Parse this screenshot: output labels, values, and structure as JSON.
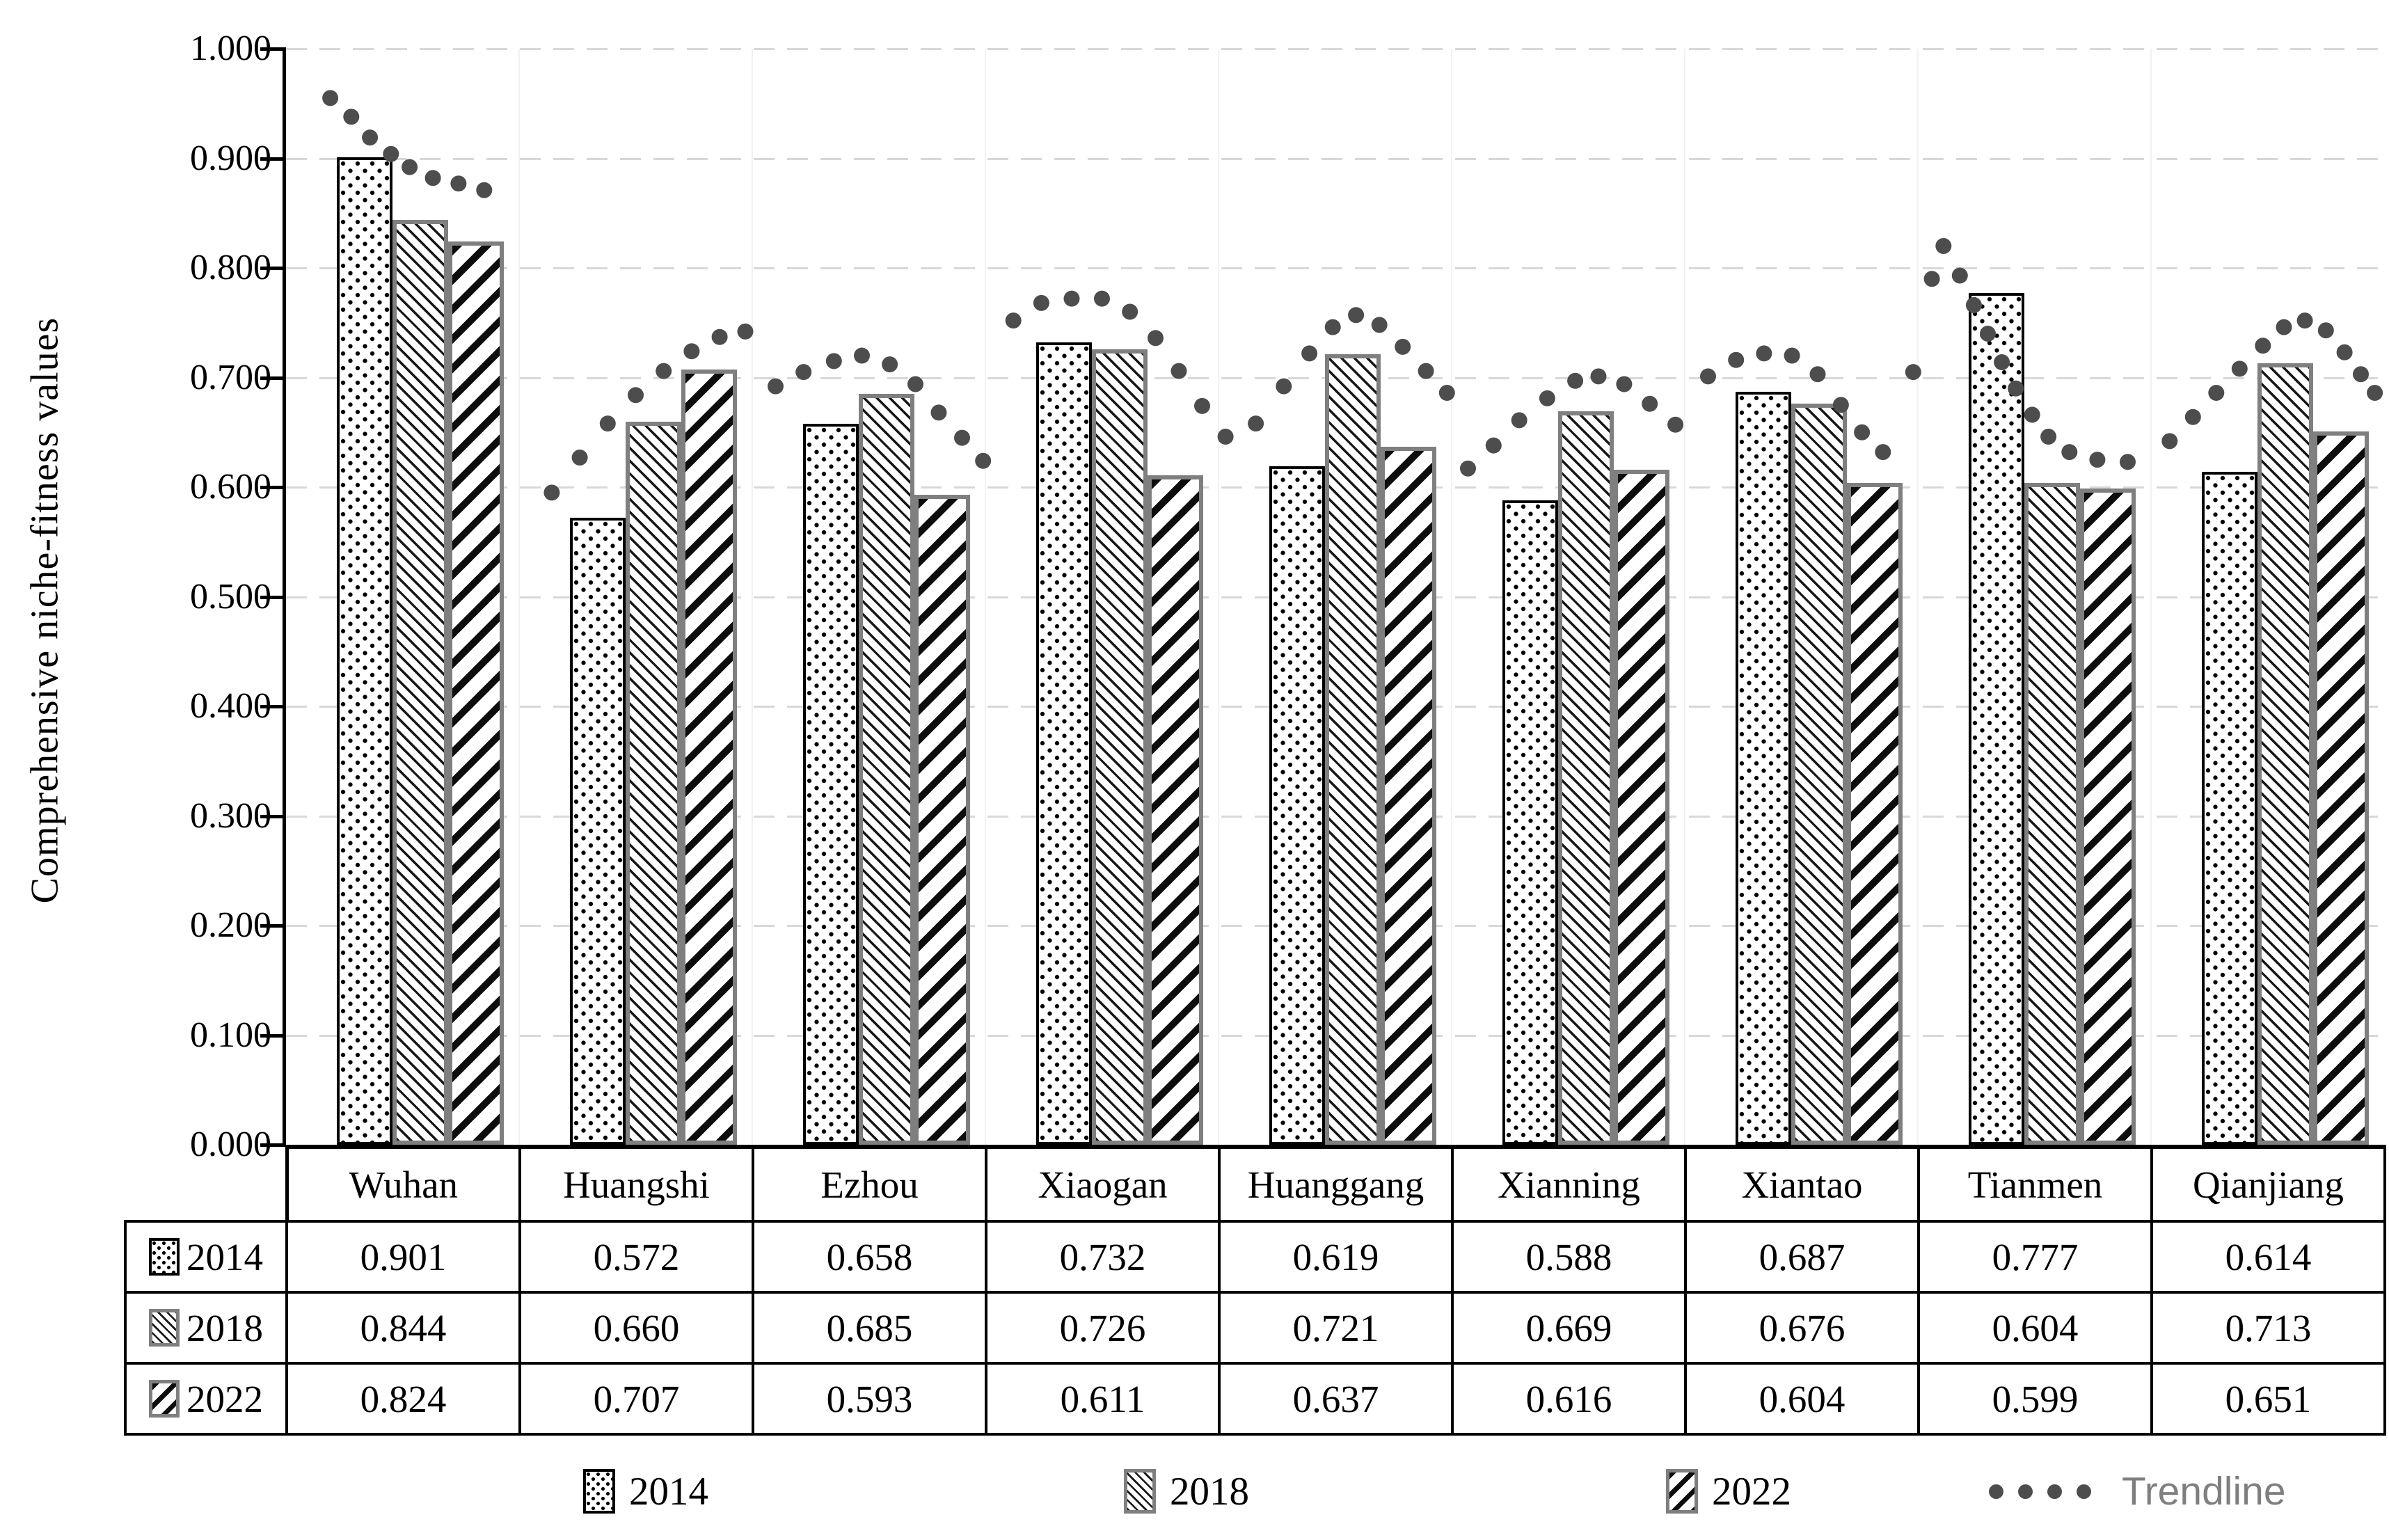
{
  "chart_data": {
    "type": "bar",
    "title": "",
    "xlabel": "",
    "ylabel": "Comprehensive niche-fitness values",
    "ylim": [
      0.0,
      1.0
    ],
    "y_tick_step": 0.1,
    "y_ticks": [
      "1.000",
      "0.900",
      "0.800",
      "0.700",
      "0.600",
      "0.500",
      "0.400",
      "0.300",
      "0.200",
      "0.100",
      "0.000"
    ],
    "grid": "horizontal dashed",
    "legend_position": "bottom",
    "categories": [
      "Wuhan",
      "Huangshi",
      "Ezhou",
      "Xiaogan",
      "Huanggang",
      "Xianning",
      "Xiantao",
      "Tianmen",
      "Qianjiang"
    ],
    "series": [
      {
        "name": "2014",
        "pattern": "dots",
        "values": [
          0.901,
          0.572,
          0.658,
          0.732,
          0.619,
          0.588,
          0.687,
          0.777,
          0.614
        ]
      },
      {
        "name": "2018",
        "pattern": "thin-diagonal",
        "values": [
          0.844,
          0.66,
          0.685,
          0.726,
          0.721,
          0.669,
          0.676,
          0.604,
          0.713
        ]
      },
      {
        "name": "2022",
        "pattern": "thick-diagonal",
        "values": [
          0.824,
          0.707,
          0.593,
          0.611,
          0.637,
          0.616,
          0.604,
          0.599,
          0.651
        ]
      }
    ],
    "trendline": {
      "name": "Trendline",
      "style": "dotted",
      "dots_unit_value": [
        [
          0.19,
          0.955
        ],
        [
          0.28,
          0.938
        ],
        [
          0.36,
          0.919
        ],
        [
          0.45,
          0.904
        ],
        [
          0.53,
          0.892
        ],
        [
          0.63,
          0.882
        ],
        [
          0.74,
          0.877
        ],
        [
          0.85,
          0.871
        ],
        [
          1.14,
          0.595
        ],
        [
          1.26,
          0.627
        ],
        [
          1.38,
          0.658
        ],
        [
          1.5,
          0.684
        ],
        [
          1.62,
          0.706
        ],
        [
          1.74,
          0.724
        ],
        [
          1.86,
          0.737
        ],
        [
          1.97,
          0.742
        ],
        [
          2.1,
          0.692
        ],
        [
          2.22,
          0.705
        ],
        [
          2.35,
          0.715
        ],
        [
          2.47,
          0.72
        ],
        [
          2.59,
          0.712
        ],
        [
          2.7,
          0.694
        ],
        [
          2.8,
          0.668
        ],
        [
          2.9,
          0.645
        ],
        [
          2.99,
          0.624
        ],
        [
          3.12,
          0.752
        ],
        [
          3.24,
          0.768
        ],
        [
          3.37,
          0.772
        ],
        [
          3.5,
          0.772
        ],
        [
          3.62,
          0.76
        ],
        [
          3.73,
          0.736
        ],
        [
          3.83,
          0.706
        ],
        [
          3.93,
          0.674
        ],
        [
          4.03,
          0.646
        ],
        [
          4.16,
          0.658
        ],
        [
          4.28,
          0.692
        ],
        [
          4.39,
          0.722
        ],
        [
          4.49,
          0.746
        ],
        [
          4.59,
          0.757
        ],
        [
          4.69,
          0.748
        ],
        [
          4.79,
          0.728
        ],
        [
          4.89,
          0.706
        ],
        [
          4.98,
          0.686
        ],
        [
          5.07,
          0.617
        ],
        [
          5.18,
          0.638
        ],
        [
          5.29,
          0.661
        ],
        [
          5.41,
          0.681
        ],
        [
          5.53,
          0.697
        ],
        [
          5.63,
          0.701
        ],
        [
          5.74,
          0.694
        ],
        [
          5.85,
          0.676
        ],
        [
          5.96,
          0.657
        ],
        [
          6.1,
          0.701
        ],
        [
          6.22,
          0.716
        ],
        [
          6.34,
          0.722
        ],
        [
          6.46,
          0.72
        ],
        [
          6.57,
          0.703
        ],
        [
          6.67,
          0.675
        ],
        [
          6.76,
          0.65
        ],
        [
          6.85,
          0.632
        ],
        [
          6.98,
          0.705
        ],
        [
          7.06,
          0.79
        ],
        [
          7.11,
          0.82
        ],
        [
          7.18,
          0.793
        ],
        [
          7.24,
          0.766
        ],
        [
          7.3,
          0.74
        ],
        [
          7.36,
          0.714
        ],
        [
          7.42,
          0.69
        ],
        [
          7.49,
          0.666
        ],
        [
          7.56,
          0.646
        ],
        [
          7.65,
          0.632
        ],
        [
          7.77,
          0.625
        ],
        [
          7.9,
          0.623
        ],
        [
          8.08,
          0.642
        ],
        [
          8.18,
          0.664
        ],
        [
          8.28,
          0.686
        ],
        [
          8.38,
          0.708
        ],
        [
          8.48,
          0.729
        ],
        [
          8.57,
          0.746
        ],
        [
          8.66,
          0.752
        ],
        [
          8.75,
          0.743
        ],
        [
          8.83,
          0.723
        ],
        [
          8.9,
          0.703
        ],
        [
          8.96,
          0.686
        ]
      ]
    }
  },
  "table": {
    "column_headers": [
      "Wuhan",
      "Huangshi",
      "Ezhou",
      "Xiaogan",
      "Huanggang",
      "Xianning",
      "Xiantao",
      "Tianmen",
      "Qianjiang"
    ],
    "rows": [
      {
        "label": "2014",
        "values": [
          "0.901",
          "0.572",
          "0.658",
          "0.732",
          "0.619",
          "0.588",
          "0.687",
          "0.777",
          "0.614"
        ]
      },
      {
        "label": "2018",
        "values": [
          "0.844",
          "0.660",
          "0.685",
          "0.726",
          "0.721",
          "0.669",
          "0.676",
          "0.604",
          "0.713"
        ]
      },
      {
        "label": "2022",
        "values": [
          "0.824",
          "0.707",
          "0.593",
          "0.611",
          "0.637",
          "0.616",
          "0.604",
          "0.599",
          "0.651"
        ]
      }
    ]
  },
  "legend": {
    "items": [
      {
        "label": "2014",
        "swatch": "dots"
      },
      {
        "label": "2018",
        "swatch": "thin-diagonal"
      },
      {
        "label": "2022",
        "swatch": "thick-diagonal"
      },
      {
        "label": "Trendline",
        "swatch": "dotted-line"
      }
    ]
  },
  "colors": {
    "background": "#ffffff",
    "axis": "#000000",
    "gridline": "#d8d8d8",
    "bar_border_2014": "#000000",
    "bar_border_2018_2022": "#7f7f7f",
    "trend_dot": "#4d4d4d",
    "trendline_label": "#7f7f7f"
  }
}
